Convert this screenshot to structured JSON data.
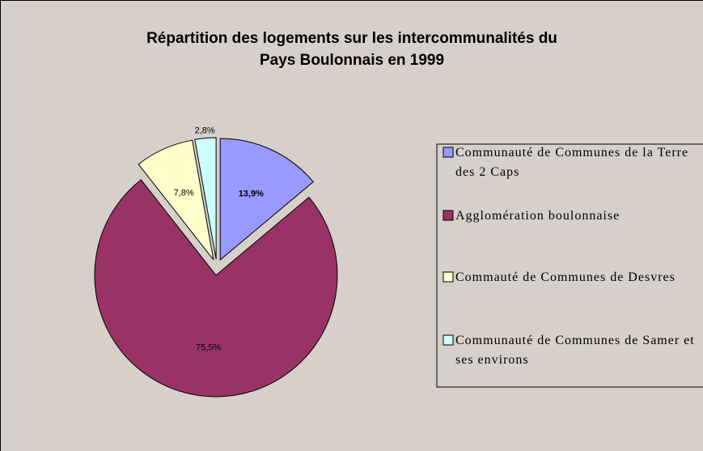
{
  "chart_data": {
    "type": "pie",
    "title": [
      "Répartition des logements sur les intercommunalités du",
      "Pays Boulonnais en 1999"
    ],
    "categories": [
      "Communauté de Communes de la Terre des 2 Caps",
      "Agglomération boulonnaise",
      "Commauté de Communes de Desvres",
      "Communauté de Communes de Samer et ses environs"
    ],
    "values": [
      13.9,
      75.5,
      7.8,
      2.8
    ],
    "value_labels": [
      "13,9%",
      "75,5%",
      "7,8%",
      "2,8%"
    ],
    "colors": [
      "#9999ff",
      "#993366",
      "#ffffcc",
      "#ccffff"
    ],
    "legend": "right"
  }
}
